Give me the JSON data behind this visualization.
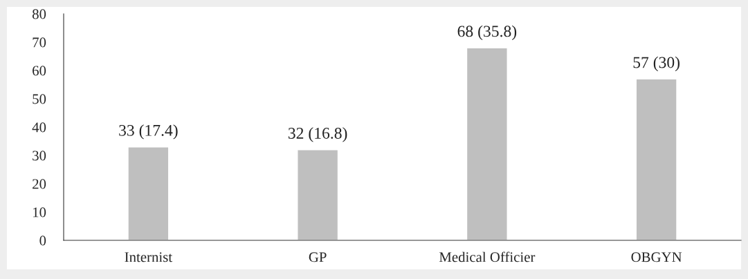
{
  "chart_data": {
    "type": "bar",
    "categories": [
      "Internist",
      "GP",
      "Medical Officier",
      "OBGYN"
    ],
    "values": [
      33,
      32,
      68,
      57
    ],
    "value_labels": [
      "33 (17.4)",
      "32 (16.8)",
      "68 (35.8)",
      "57 (30)"
    ],
    "color": "#bfbfbf",
    "ylim": [
      0,
      80
    ],
    "yticks": [
      0,
      10,
      20,
      30,
      40,
      50,
      60,
      70,
      80
    ],
    "grid": false,
    "legend": false
  }
}
